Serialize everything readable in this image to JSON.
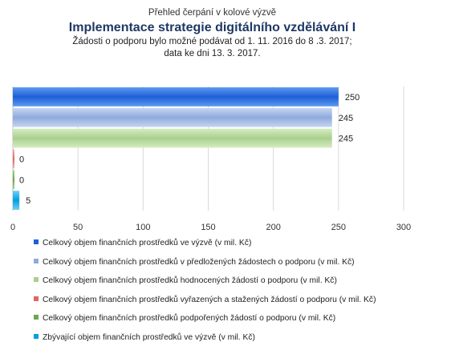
{
  "header": {
    "pretitle": "Přehled čerpání v kolové výzvě",
    "title": "Implementace strategie digitálního vzdělávání I",
    "subtitle_line1": "Žádosti o podporu bylo možné  podávat od 1. 11. 2016 do 8 .3. 2017;",
    "subtitle_line2": "data ke dni 13. 3. 2017."
  },
  "chart_data": {
    "type": "bar",
    "orientation": "horizontal",
    "title": "Implementace strategie digitálního vzdělávání I",
    "xlim": [
      0,
      300
    ],
    "x_ticks": [
      "0",
      "50",
      "100",
      "150",
      "200",
      "250",
      "300"
    ],
    "grid": true,
    "legend_position": "bottom",
    "series": [
      {
        "name": "Celkový objem finančních prostředků ve výzvě (v mil. Kč)",
        "value": 250,
        "label": "250",
        "color": "#1f5fd6",
        "color_light": "#5b9bf0"
      },
      {
        "name": "Celkový objem finančních prostředků v předložených žádostech o podporu (v mil. Kč)",
        "value": 245,
        "label": "245",
        "color": "#8faadc",
        "color_light": "#c6d6f2"
      },
      {
        "name": "Celkový objem finančních prostředků hodnocených žádostí o podporu (v mil. Kč)",
        "value": 245,
        "label": "245",
        "color": "#a9d08e",
        "color_light": "#d5ecc2"
      },
      {
        "name": "Celkový objem finančních prostředků vyřazených a stažených žádostí o podporu (v mil. Kč)",
        "value": 0,
        "label": "0",
        "color": "#e06666",
        "color_light": "#f2b3b3"
      },
      {
        "name": "Celkový objem finančních prostředků podpořených žádostí o podporu (v mil. Kč)",
        "value": 0,
        "label": "0",
        "color": "#6aa84f",
        "color_light": "#a8d68f"
      },
      {
        "name": "Zbývající objem finančních prostředků ve výzvě (v mil. Kč)",
        "value": 5,
        "label": "5",
        "color": "#00a0e3",
        "color_light": "#6fd0f7"
      }
    ]
  }
}
